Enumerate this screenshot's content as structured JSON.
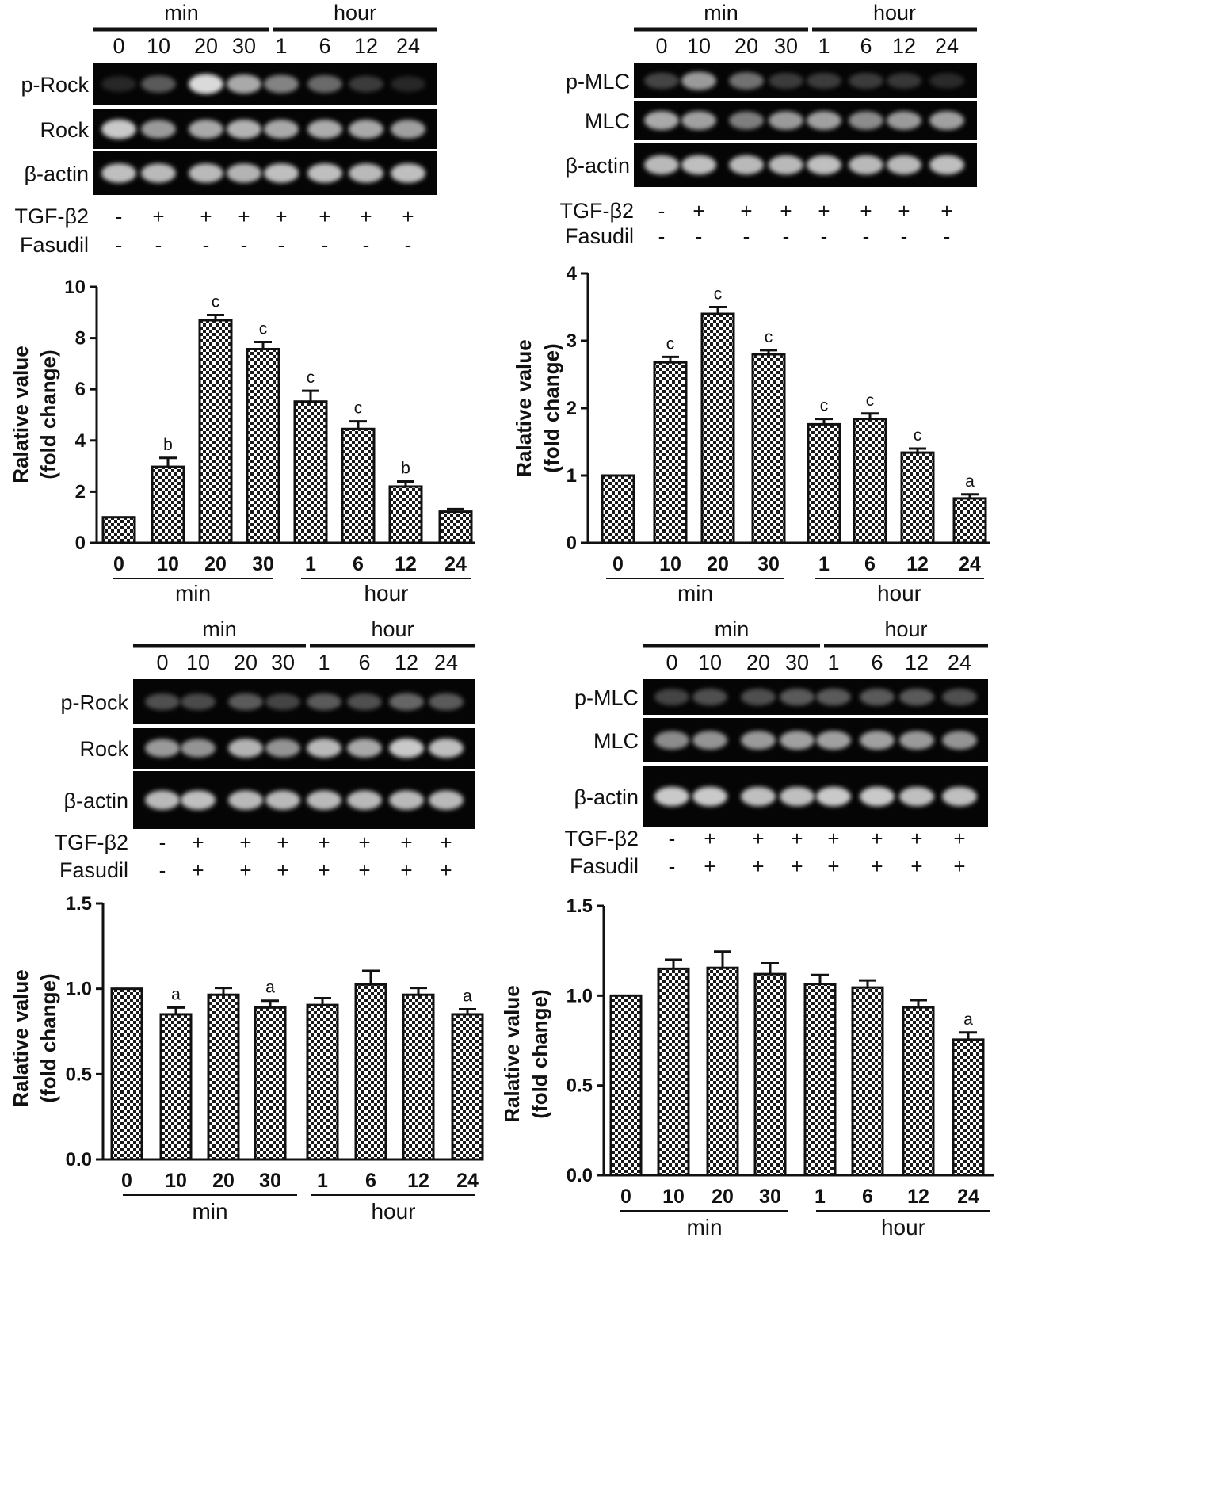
{
  "blot_panels": [
    {
      "panel_id": "blot-rock-tgf",
      "group_labels": [
        "min",
        "hour"
      ],
      "lanes": [
        "0",
        "10",
        "20",
        "30",
        "1",
        "6",
        "12",
        "24"
      ],
      "rows": [
        {
          "label": "p-Rock",
          "intensities": [
            0.18,
            0.45,
            0.9,
            0.75,
            0.62,
            0.52,
            0.3,
            0.18
          ]
        },
        {
          "label": "Rock",
          "intensities": [
            0.85,
            0.7,
            0.75,
            0.78,
            0.75,
            0.76,
            0.75,
            0.72
          ]
        },
        {
          "label": "β-actin",
          "intensities": [
            0.82,
            0.8,
            0.8,
            0.78,
            0.82,
            0.82,
            0.8,
            0.82
          ]
        }
      ],
      "treatments": [
        {
          "label": "TGF-β2",
          "signs": [
            "-",
            "+",
            "+",
            "+",
            "+",
            "+",
            "+",
            "+"
          ]
        },
        {
          "label": "Fasudil",
          "signs": [
            "-",
            "-",
            "-",
            "-",
            "-",
            "-",
            "-",
            "-"
          ]
        }
      ]
    },
    {
      "panel_id": "blot-mlc-tgf",
      "group_labels": [
        "min",
        "hour"
      ],
      "lanes": [
        "0",
        "10",
        "20",
        "30",
        "1",
        "6",
        "12",
        "24"
      ],
      "rows": [
        {
          "label": "p-MLC",
          "intensities": [
            0.35,
            0.7,
            0.55,
            0.3,
            0.3,
            0.3,
            0.28,
            0.2
          ]
        },
        {
          "label": "MLC",
          "intensities": [
            0.75,
            0.72,
            0.6,
            0.7,
            0.72,
            0.65,
            0.7,
            0.72
          ]
        },
        {
          "label": "β-actin",
          "intensities": [
            0.8,
            0.82,
            0.8,
            0.8,
            0.82,
            0.8,
            0.8,
            0.82
          ]
        }
      ],
      "treatments": [
        {
          "label": "TGF-β2",
          "signs": [
            "-",
            "+",
            "+",
            "+",
            "+",
            "+",
            "+",
            "+"
          ]
        },
        {
          "label": "Fasudil",
          "signs": [
            "-",
            "-",
            "-",
            "-",
            "-",
            "-",
            "-",
            "-"
          ]
        }
      ]
    },
    {
      "panel_id": "blot-rock-fasudil",
      "group_labels": [
        "min",
        "hour"
      ],
      "lanes": [
        "0",
        "10",
        "20",
        "30",
        "1",
        "6",
        "12",
        "24"
      ],
      "rows": [
        {
          "label": "p-Rock",
          "intensities": [
            0.4,
            0.38,
            0.45,
            0.35,
            0.45,
            0.4,
            0.5,
            0.45
          ]
        },
        {
          "label": "Rock",
          "intensities": [
            0.7,
            0.68,
            0.78,
            0.68,
            0.8,
            0.75,
            0.85,
            0.82
          ]
        },
        {
          "label": "β-actin",
          "intensities": [
            0.8,
            0.82,
            0.8,
            0.8,
            0.8,
            0.8,
            0.8,
            0.8
          ]
        }
      ],
      "treatments": [
        {
          "label": "TGF-β2",
          "signs": [
            "-",
            "+",
            "+",
            "+",
            "+",
            "+",
            "+",
            "+"
          ]
        },
        {
          "label": "Fasudil",
          "signs": [
            "-",
            "+",
            "+",
            "+",
            "+",
            "+",
            "+",
            "+"
          ]
        }
      ]
    },
    {
      "panel_id": "blot-mlc-fasudil",
      "group_labels": [
        "min",
        "hour"
      ],
      "lanes": [
        "0",
        "10",
        "20",
        "30",
        "1",
        "6",
        "12",
        "24"
      ],
      "rows": [
        {
          "label": "p-MLC",
          "intensities": [
            0.35,
            0.4,
            0.4,
            0.45,
            0.45,
            0.45,
            0.45,
            0.4
          ]
        },
        {
          "label": "MLC",
          "intensities": [
            0.65,
            0.68,
            0.7,
            0.72,
            0.72,
            0.72,
            0.7,
            0.68
          ]
        },
        {
          "label": "β-actin",
          "intensities": [
            0.85,
            0.85,
            0.82,
            0.82,
            0.85,
            0.85,
            0.82,
            0.82
          ]
        }
      ],
      "treatments": [
        {
          "label": "TGF-β2",
          "signs": [
            "-",
            "+",
            "+",
            "+",
            "+",
            "+",
            "+",
            "+"
          ]
        },
        {
          "label": "Fasudil",
          "signs": [
            "-",
            "+",
            "+",
            "+",
            "+",
            "+",
            "+",
            "+"
          ]
        }
      ]
    }
  ],
  "chart_data": [
    {
      "type": "bar",
      "panel_id": "chart-rock-tgf",
      "categories": [
        "0",
        "10",
        "20",
        "30",
        "1",
        "6",
        "12",
        "24"
      ],
      "groups": [
        "min",
        "hour"
      ],
      "values": [
        1.0,
        2.97,
        8.7,
        7.57,
        5.52,
        4.45,
        2.2,
        1.22
      ],
      "errors": [
        0,
        0.35,
        0.2,
        0.28,
        0.42,
        0.3,
        0.2,
        0.1
      ],
      "significance": [
        "",
        "b",
        "c",
        "c",
        "c",
        "c",
        "b",
        ""
      ],
      "ylabel": [
        "Ralative value",
        "(fold change)"
      ],
      "ylim": [
        0,
        10
      ],
      "yticks": [
        "0",
        "2",
        "4",
        "6",
        "8",
        "10"
      ]
    },
    {
      "type": "bar",
      "panel_id": "chart-mlc-tgf",
      "categories": [
        "0",
        "10",
        "20",
        "30",
        "1",
        "6",
        "12",
        "24"
      ],
      "groups": [
        "min",
        "hour"
      ],
      "values": [
        1.0,
        2.68,
        3.4,
        2.8,
        1.76,
        1.84,
        1.34,
        0.66
      ],
      "errors": [
        0,
        0.08,
        0.1,
        0.06,
        0.08,
        0.08,
        0.06,
        0.06
      ],
      "significance": [
        "",
        "c",
        "c",
        "c",
        "c",
        "c",
        "c",
        "a"
      ],
      "ylabel": [
        "Ralative value",
        "(fold change)"
      ],
      "ylim": [
        0,
        4
      ],
      "yticks": [
        "0",
        "1",
        "2",
        "3",
        "4"
      ]
    },
    {
      "type": "bar",
      "panel_id": "chart-rock-fasudil",
      "categories": [
        "0",
        "10",
        "20",
        "30",
        "1",
        "6",
        "12",
        "24"
      ],
      "groups": [
        "min",
        "hour"
      ],
      "values": [
        1.0,
        0.85,
        0.965,
        0.89,
        0.905,
        1.025,
        0.965,
        0.85
      ],
      "errors": [
        0,
        0.04,
        0.04,
        0.04,
        0.04,
        0.08,
        0.04,
        0.03
      ],
      "significance": [
        "",
        "a",
        "",
        "a",
        "",
        "",
        "",
        "a"
      ],
      "ylabel": [
        "Ralative value",
        "(fold change)"
      ],
      "ylim": [
        0,
        1.5
      ],
      "yticks": [
        "0.0",
        "0.5",
        "1.0",
        "1.5"
      ]
    },
    {
      "type": "bar",
      "panel_id": "chart-mlc-fasudil",
      "categories": [
        "0",
        "10",
        "20",
        "30",
        "1",
        "6",
        "12",
        "24"
      ],
      "groups": [
        "min",
        "hour"
      ],
      "values": [
        1.0,
        1.15,
        1.155,
        1.12,
        1.065,
        1.045,
        0.935,
        0.755
      ],
      "errors": [
        0,
        0.05,
        0.09,
        0.06,
        0.05,
        0.04,
        0.04,
        0.04
      ],
      "significance": [
        "",
        "",
        "",
        "",
        "",
        "",
        "",
        "a"
      ],
      "ylabel": [
        "Ralative value",
        "(fold change)"
      ],
      "ylim": [
        0,
        1.5
      ],
      "yticks": [
        "0.0",
        "0.5",
        "1.0",
        "1.5"
      ]
    }
  ]
}
